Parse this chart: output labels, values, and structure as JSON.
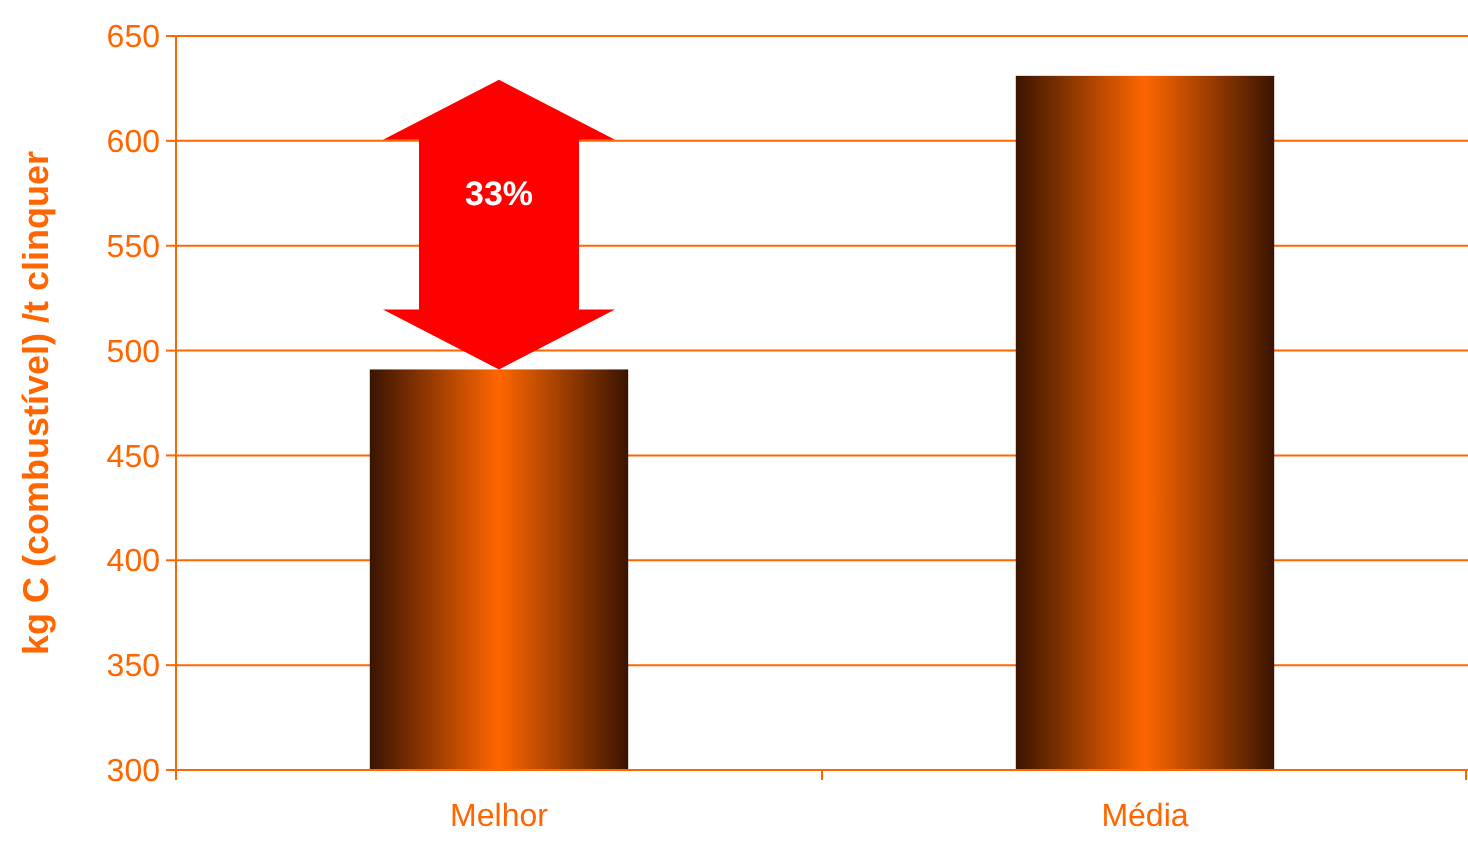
{
  "chart_data": {
    "type": "bar",
    "ylabel": "kg C (combustível) /t clinquer",
    "categories": [
      "Melhor",
      "Média"
    ],
    "values": [
      491,
      631
    ],
    "color": "#ff6600",
    "ylim": [
      300,
      650
    ],
    "yticks": [
      300,
      350,
      400,
      450,
      500,
      550,
      600,
      650
    ],
    "grid": "y",
    "annotations": [
      "33%"
    ]
  }
}
